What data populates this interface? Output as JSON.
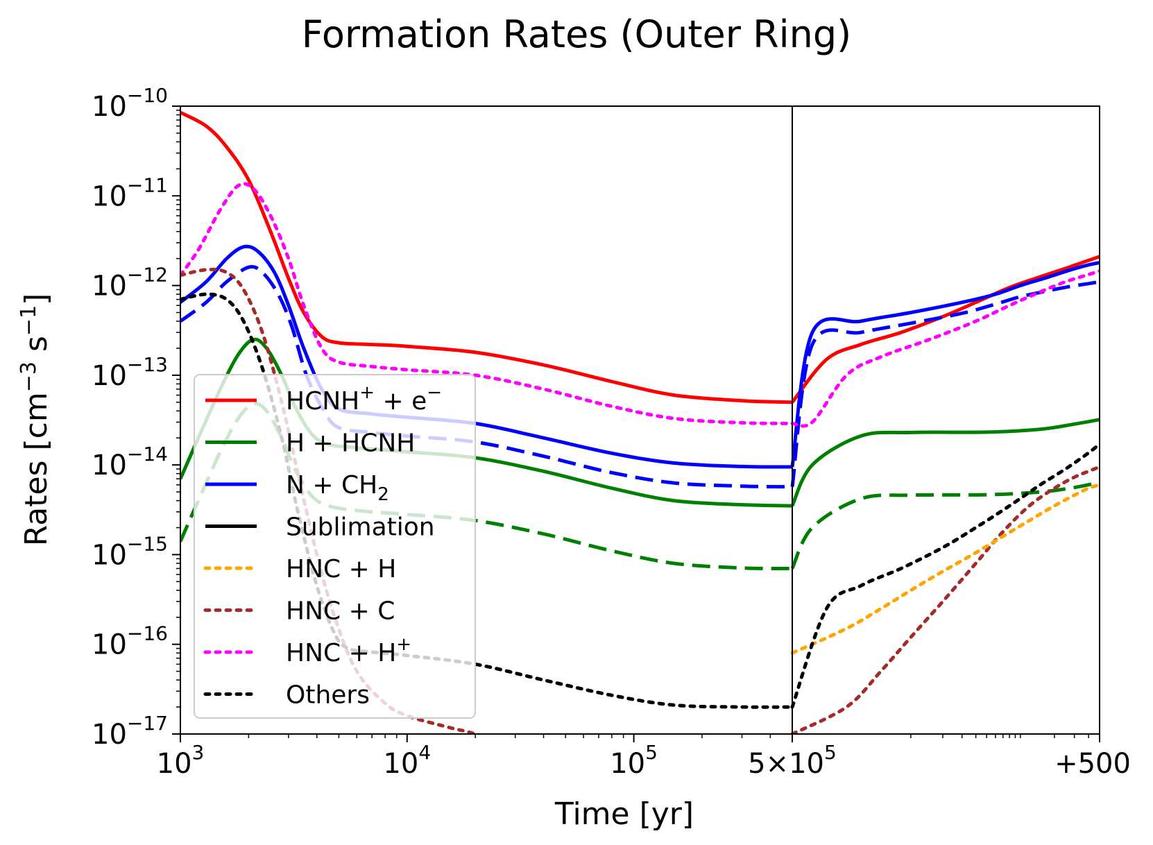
{
  "chart_data": {
    "type": "line",
    "title": "Formation Rates (Outer Ring)",
    "xlabel": "Time [yr]",
    "ylabel_main": "Rates [cm",
    "ylabel_sup1": "−3",
    "ylabel_mid": " s",
    "ylabel_sup2": "−1",
    "ylabel_end": "]",
    "yscale": "log",
    "ylim": [
      1e-17,
      1e-10
    ],
    "x_left_scale": "log",
    "x_left_range": [
      1000,
      500000
    ],
    "x_right_range": [
      0,
      500
    ],
    "grid": false,
    "legend_position": "lower-left",
    "x_ticks": [
      {
        "value": 1000,
        "base": "10",
        "exp": "3"
      },
      {
        "value": 10000,
        "base": "10",
        "exp": "4"
      },
      {
        "value": 100000,
        "base": "10",
        "exp": "5"
      },
      {
        "value": 500000,
        "base": "5×10",
        "exp": "5"
      },
      {
        "value": 500,
        "panel": "right",
        "base": "+500",
        "exp": ""
      }
    ],
    "y_ticks": [
      {
        "value": 1e-10,
        "base": "10",
        "exp": "−10"
      },
      {
        "value": 1e-11,
        "base": "10",
        "exp": "−11"
      },
      {
        "value": 1e-12,
        "base": "10",
        "exp": "−12"
      },
      {
        "value": 1e-13,
        "base": "10",
        "exp": "−13"
      },
      {
        "value": 1e-14,
        "base": "10",
        "exp": "−14"
      },
      {
        "value": 1e-15,
        "base": "10",
        "exp": "−15"
      },
      {
        "value": 1e-16,
        "base": "10",
        "exp": "−16"
      },
      {
        "value": 1e-17,
        "base": "10",
        "exp": "−17"
      }
    ],
    "legend": [
      {
        "label": "HCNH",
        "sup": "+",
        "rest": " + e",
        "sup2": "−",
        "color": "#ff0000",
        "style": "solid"
      },
      {
        "label": "H + HCNH",
        "sup": "",
        "rest": "",
        "sup2": "",
        "color": "#008000",
        "style": "solid"
      },
      {
        "label": "N + CH",
        "sub": "2",
        "color": "#0000ff",
        "style": "solid"
      },
      {
        "label": "Sublimation",
        "color": "#000000",
        "style": "solid"
      },
      {
        "label": "HNC + H",
        "color": "#ffa500",
        "style": "dotted"
      },
      {
        "label": "HNC + C",
        "color": "#a52a2a",
        "style": "dotted"
      },
      {
        "label": "HNC + H",
        "sup": "+",
        "color": "#ff00ff",
        "style": "dotted"
      },
      {
        "label": "Others",
        "color": "#000000",
        "style": "dotted"
      }
    ],
    "series": [
      {
        "legend": 0,
        "color": "#ff0000",
        "dash": "solid",
        "left": [
          [
            1000,
            8.5e-11
          ],
          [
            1300,
            6e-11
          ],
          [
            1600,
            3.5e-11
          ],
          [
            2000,
            1.5e-11
          ],
          [
            2500,
            4e-12
          ],
          [
            3000,
            1.2e-12
          ],
          [
            3500,
            5e-13
          ],
          [
            4200,
            2.7e-13
          ],
          [
            5000,
            2.3e-13
          ],
          [
            7000,
            2.2e-13
          ],
          [
            10000,
            2.1e-13
          ],
          [
            20000,
            1.8e-13
          ],
          [
            40000,
            1.3e-13
          ],
          [
            80000,
            8.5e-14
          ],
          [
            150000,
            6e-14
          ],
          [
            300000,
            5.2e-14
          ],
          [
            500000,
            5e-14
          ]
        ],
        "right": [
          [
            0,
            5e-14
          ],
          [
            1,
            1.5e-13
          ],
          [
            3,
            2.2e-13
          ],
          [
            8,
            3e-13
          ],
          [
            20,
            4.5e-13
          ],
          [
            40,
            6.5e-13
          ],
          [
            80,
            9.5e-13
          ],
          [
            150,
            1.25e-12
          ],
          [
            250,
            1.55e-12
          ],
          [
            350,
            1.8e-12
          ],
          [
            500,
            2.1e-12
          ]
        ]
      },
      {
        "legend": 2,
        "color": "#0000ff",
        "dash": "solid",
        "left": [
          [
            1000,
            6.5e-13
          ],
          [
            1300,
            1.1e-12
          ],
          [
            1600,
            2e-12
          ],
          [
            1900,
            2.7e-12
          ],
          [
            2200,
            2.4e-12
          ],
          [
            2600,
            1.4e-12
          ],
          [
            3000,
            6e-13
          ],
          [
            3500,
            2e-13
          ],
          [
            4200,
            7e-14
          ],
          [
            5000,
            4.2e-14
          ],
          [
            7000,
            3.7e-14
          ],
          [
            10000,
            3.4e-14
          ],
          [
            20000,
            2.9e-14
          ],
          [
            40000,
            2e-14
          ],
          [
            80000,
            1.35e-14
          ],
          [
            150000,
            1.05e-14
          ],
          [
            300000,
            9.6e-15
          ],
          [
            500000,
            9.5e-15
          ]
        ],
        "right": [
          [
            0,
            9.5e-15
          ],
          [
            0.5,
            3e-13
          ],
          [
            3,
            4e-13
          ],
          [
            10,
            5e-13
          ],
          [
            30,
            6.5e-13
          ],
          [
            60,
            8e-13
          ],
          [
            100,
            1e-12
          ],
          [
            180,
            1.25e-12
          ],
          [
            280,
            1.5e-12
          ],
          [
            400,
            1.7e-12
          ],
          [
            500,
            1.8e-12
          ]
        ]
      },
      {
        "legend": 2,
        "color": "#0000ff",
        "dash": "dashed",
        "left": [
          [
            1000,
            4e-13
          ],
          [
            1300,
            6.5e-13
          ],
          [
            1600,
            1.1e-12
          ],
          [
            2000,
            1.6e-12
          ],
          [
            2300,
            1.4e-12
          ],
          [
            2700,
            8e-13
          ],
          [
            3100,
            3.5e-13
          ],
          [
            3600,
            1e-13
          ],
          [
            4300,
            4e-14
          ],
          [
            5000,
            2.6e-14
          ],
          [
            7000,
            2.3e-14
          ],
          [
            10000,
            2.1e-14
          ],
          [
            20000,
            1.8e-14
          ],
          [
            40000,
            1.25e-14
          ],
          [
            80000,
            8.2e-15
          ],
          [
            150000,
            6.3e-15
          ],
          [
            300000,
            5.8e-15
          ],
          [
            500000,
            5.7e-15
          ]
        ],
        "right": [
          [
            0,
            5.7e-15
          ],
          [
            0.5,
            2.2e-13
          ],
          [
            3,
            3e-13
          ],
          [
            10,
            3.8e-13
          ],
          [
            30,
            4.9e-13
          ],
          [
            60,
            6.2e-13
          ],
          [
            100,
            7.5e-13
          ],
          [
            180,
            8.8e-13
          ],
          [
            280,
            9.8e-13
          ],
          [
            400,
            1.05e-12
          ],
          [
            500,
            1.1e-12
          ]
        ]
      },
      {
        "legend": 1,
        "color": "#008000",
        "dash": "solid",
        "left": [
          [
            1000,
            7e-15
          ],
          [
            1200,
            2e-14
          ],
          [
            1500,
            7e-14
          ],
          [
            1800,
            1.7e-13
          ],
          [
            2100,
            2.5e-13
          ],
          [
            2400,
            2e-13
          ],
          [
            2800,
            1e-13
          ],
          [
            3200,
            4.5e-14
          ],
          [
            3800,
            2.2e-14
          ],
          [
            4500,
            1.7e-14
          ],
          [
            6000,
            1.55e-14
          ],
          [
            10000,
            1.4e-14
          ],
          [
            20000,
            1.2e-14
          ],
          [
            40000,
            8.5e-15
          ],
          [
            80000,
            5.5e-15
          ],
          [
            150000,
            4e-15
          ],
          [
            300000,
            3.6e-15
          ],
          [
            500000,
            3.5e-15
          ]
        ],
        "right": [
          [
            0,
            3.5e-15
          ],
          [
            0.5,
            1e-14
          ],
          [
            3,
            2.1e-14
          ],
          [
            10,
            2.3e-14
          ],
          [
            50,
            2.32e-14
          ],
          [
            150,
            2.5e-14
          ],
          [
            300,
            2.85e-14
          ],
          [
            500,
            3.2e-14
          ]
        ]
      },
      {
        "legend": 1,
        "color": "#008000",
        "dash": "dashed",
        "left": [
          [
            1000,
            1.4e-15
          ],
          [
            1200,
            4e-15
          ],
          [
            1500,
            1.4e-14
          ],
          [
            1800,
            3.3e-14
          ],
          [
            2100,
            4.8e-14
          ],
          [
            2400,
            4e-14
          ],
          [
            2800,
            2e-14
          ],
          [
            3200,
            9e-15
          ],
          [
            3800,
            4.5e-15
          ],
          [
            4500,
            3.5e-15
          ],
          [
            6000,
            3.1e-15
          ],
          [
            10000,
            2.8e-15
          ],
          [
            20000,
            2.4e-15
          ],
          [
            40000,
            1.7e-15
          ],
          [
            80000,
            1.1e-15
          ],
          [
            150000,
            8e-16
          ],
          [
            300000,
            7.1e-16
          ],
          [
            500000,
            7e-16
          ]
        ],
        "right": [
          [
            0,
            7e-16
          ],
          [
            0.5,
            2e-15
          ],
          [
            3,
            4.2e-15
          ],
          [
            10,
            4.6e-15
          ],
          [
            50,
            4.65e-15
          ],
          [
            150,
            5e-15
          ],
          [
            300,
            5.6e-15
          ],
          [
            500,
            6.4e-15
          ]
        ]
      },
      {
        "legend": 6,
        "color": "#ff00ff",
        "dash": "dotted",
        "left": [
          [
            1000,
            1.3e-12
          ],
          [
            1200,
            2.5e-12
          ],
          [
            1500,
            7e-12
          ],
          [
            1800,
            1.3e-11
          ],
          [
            2100,
            1.2e-11
          ],
          [
            2500,
            6e-12
          ],
          [
            3000,
            2e-12
          ],
          [
            3500,
            6e-13
          ],
          [
            4200,
            2e-13
          ],
          [
            5000,
            1.4e-13
          ],
          [
            7000,
            1.25e-13
          ],
          [
            10000,
            1.15e-13
          ],
          [
            20000,
            1e-13
          ],
          [
            40000,
            7e-14
          ],
          [
            80000,
            4.5e-14
          ],
          [
            150000,
            3.3e-14
          ],
          [
            300000,
            2.95e-14
          ],
          [
            500000,
            2.9e-14
          ]
        ],
        "right": [
          [
            0,
            2.9e-14
          ],
          [
            0.5,
            3e-14
          ],
          [
            2,
            1e-13
          ],
          [
            5,
            1.6e-13
          ],
          [
            15,
            2.5e-13
          ],
          [
            40,
            4e-13
          ],
          [
            80,
            6e-13
          ],
          [
            150,
            8.5e-13
          ],
          [
            250,
            1.1e-12
          ],
          [
            380,
            1.3e-12
          ],
          [
            500,
            1.45e-12
          ]
        ]
      },
      {
        "legend": 5,
        "color": "#a52a2a",
        "dash": "dotted",
        "left": [
          [
            1000,
            1.3e-12
          ],
          [
            1300,
            1.5e-12
          ],
          [
            1600,
            1.4e-12
          ],
          [
            1900,
            9e-13
          ],
          [
            2300,
            3e-13
          ],
          [
            2800,
            5e-14
          ],
          [
            3300,
            8e-15
          ],
          [
            4000,
            1e-15
          ],
          [
            4800,
            2e-16
          ],
          [
            6000,
            5e-17
          ],
          [
            8000,
            2.2e-17
          ],
          [
            10000,
            1.6e-17
          ],
          [
            15000,
            1.2e-17
          ],
          [
            20000,
            1e-17
          ],
          [
            30000,
            7e-18
          ]
        ],
        "right": [
          [
            0,
            1e-17
          ],
          [
            2,
            2e-17
          ],
          [
            5,
            5e-17
          ],
          [
            10,
            1.2e-16
          ],
          [
            20,
            3e-16
          ],
          [
            40,
            8e-16
          ],
          [
            70,
            1.8e-15
          ],
          [
            120,
            3.5e-15
          ],
          [
            200,
            5.5e-15
          ],
          [
            300,
            7.3e-15
          ],
          [
            400,
            8.5e-15
          ],
          [
            500,
            9.5e-15
          ]
        ]
      },
      {
        "legend": 4,
        "color": "#ffa500",
        "dash": "dotted",
        "left": [],
        "right": [
          [
            0,
            8e-17
          ],
          [
            2,
            1.5e-16
          ],
          [
            5,
            2.5e-16
          ],
          [
            10,
            4e-16
          ],
          [
            20,
            6.5e-16
          ],
          [
            40,
            1.05e-15
          ],
          [
            70,
            1.6e-15
          ],
          [
            120,
            2.4e-15
          ],
          [
            200,
            3.5e-15
          ],
          [
            300,
            4.6e-15
          ],
          [
            400,
            5.5e-15
          ],
          [
            500,
            6e-15
          ]
        ]
      },
      {
        "legend": 7,
        "color": "#000000",
        "dash": "dotted",
        "left": [
          [
            1000,
            7e-13
          ],
          [
            1300,
            8e-13
          ],
          [
            1600,
            7e-13
          ],
          [
            1900,
            4e-13
          ],
          [
            2300,
            1.2e-13
          ],
          [
            2800,
            2e-14
          ],
          [
            3300,
            3e-15
          ],
          [
            4000,
            4.5e-16
          ],
          [
            4800,
            1.3e-16
          ],
          [
            5500,
            9e-17
          ],
          [
            7000,
            8.2e-17
          ],
          [
            10000,
            7.5e-17
          ],
          [
            20000,
            6e-17
          ],
          [
            40000,
            4e-17
          ],
          [
            80000,
            2.7e-17
          ],
          [
            150000,
            2.1e-17
          ],
          [
            300000,
            2e-17
          ],
          [
            500000,
            2e-17
          ]
        ],
        "right": [
          [
            0,
            2e-17
          ],
          [
            1,
            2.5e-16
          ],
          [
            3,
            4.5e-16
          ],
          [
            8,
            7e-16
          ],
          [
            20,
            1.2e-15
          ],
          [
            40,
            2e-15
          ],
          [
            80,
            3.5e-15
          ],
          [
            150,
            6e-15
          ],
          [
            250,
            9e-15
          ],
          [
            380,
            1.3e-14
          ],
          [
            500,
            1.7e-14
          ]
        ]
      }
    ]
  }
}
